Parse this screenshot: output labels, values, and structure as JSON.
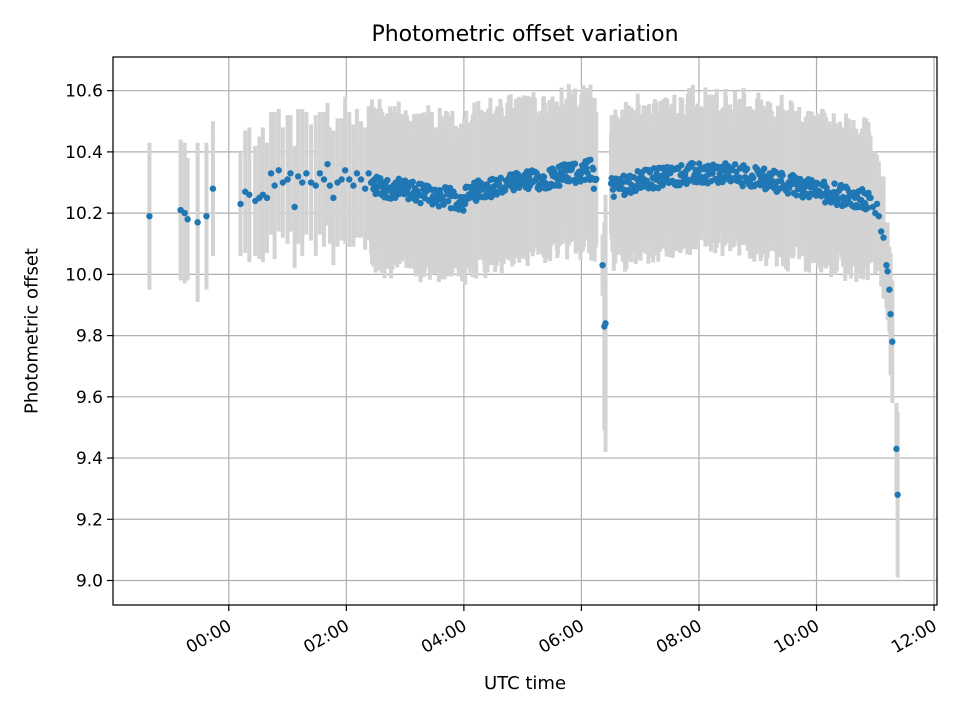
{
  "chart_data": {
    "type": "scatter",
    "title": "Photometric offset variation",
    "xlabel": "UTC time",
    "ylabel": "Photometric offset",
    "x_axis": {
      "kind": "time",
      "range_hours": [
        -1.97,
        12.05
      ],
      "ticks": [
        {
          "hour": 0,
          "label": "00:00"
        },
        {
          "hour": 2,
          "label": "02:00"
        },
        {
          "hour": 4,
          "label": "04:00"
        },
        {
          "hour": 6,
          "label": "06:00"
        },
        {
          "hour": 8,
          "label": "08:00"
        },
        {
          "hour": 10,
          "label": "10:00"
        },
        {
          "hour": 12,
          "label": "12:00"
        }
      ]
    },
    "y_axis": {
      "range": [
        8.92,
        10.71
      ],
      "ticks": [
        "9.0",
        "9.2",
        "9.4",
        "9.6",
        "9.8",
        "10.0",
        "10.2",
        "10.4",
        "10.6"
      ]
    },
    "grid": true,
    "marker_color": "#1f77b4",
    "errorbar_color": "#d3d3d3",
    "series": [
      {
        "columns": [
          "hour",
          "offset",
          "error"
        ],
        "points": [
          [
            -1.35,
            10.19,
            0.24
          ],
          [
            -0.82,
            10.21,
            0.23
          ],
          [
            -0.75,
            10.2,
            0.23
          ],
          [
            -0.7,
            10.18,
            0.2
          ],
          [
            -0.53,
            10.17,
            0.26
          ],
          [
            -0.38,
            10.19,
            0.24
          ],
          [
            -0.27,
            10.28,
            0.22
          ],
          [
            0.2,
            10.23,
            0.17
          ],
          [
            0.28,
            10.27,
            0.2
          ],
          [
            0.35,
            10.26,
            0.22
          ],
          [
            0.45,
            10.24,
            0.18
          ],
          [
            0.52,
            10.25,
            0.2
          ],
          [
            0.58,
            10.26,
            0.22
          ],
          [
            0.65,
            10.25,
            0.18
          ],
          [
            0.72,
            10.33,
            0.2
          ],
          [
            0.78,
            10.29,
            0.24
          ],
          [
            0.85,
            10.34,
            0.2
          ],
          [
            0.92,
            10.3,
            0.18
          ],
          [
            1.0,
            10.31,
            0.21
          ],
          [
            1.05,
            10.33,
            0.19
          ],
          [
            1.12,
            10.22,
            0.2
          ],
          [
            1.18,
            10.32,
            0.22
          ],
          [
            1.25,
            10.3,
            0.24
          ],
          [
            1.32,
            10.33,
            0.2
          ],
          [
            1.4,
            10.3,
            0.19
          ],
          [
            1.48,
            10.29,
            0.23
          ],
          [
            1.55,
            10.33,
            0.2
          ],
          [
            1.62,
            10.31,
            0.22
          ],
          [
            1.68,
            10.36,
            0.2
          ],
          [
            1.72,
            10.29,
            0.19
          ],
          [
            1.78,
            10.25,
            0.22
          ],
          [
            1.85,
            10.3,
            0.21
          ],
          [
            1.92,
            10.31,
            0.2
          ],
          [
            1.98,
            10.34,
            0.24
          ],
          [
            2.05,
            10.31,
            0.22
          ],
          [
            2.12,
            10.29,
            0.2
          ],
          [
            2.18,
            10.33,
            0.21
          ],
          [
            2.25,
            10.31,
            0.19
          ],
          [
            2.32,
            10.28,
            0.2
          ],
          [
            2.38,
            10.33,
            0.22
          ]
        ]
      }
    ]
  }
}
